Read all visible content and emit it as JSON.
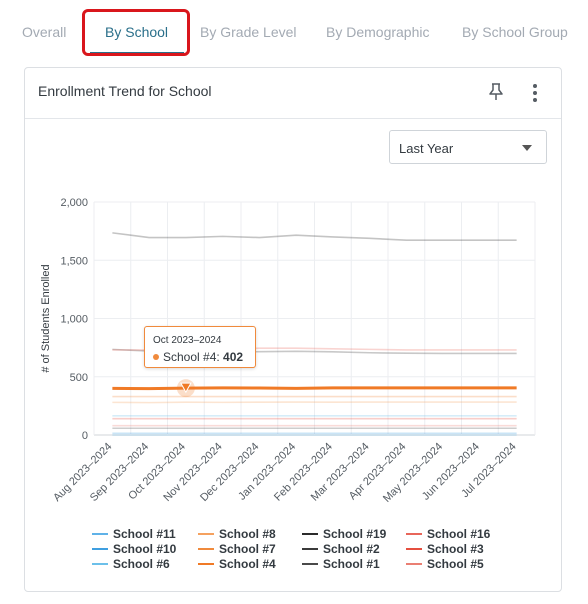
{
  "tabs": [
    {
      "label": "Overall",
      "active": false
    },
    {
      "label": "By School",
      "active": true
    },
    {
      "label": "By Grade Level",
      "active": false
    },
    {
      "label": "By Demographic",
      "active": false
    },
    {
      "label": "By School Group",
      "active": false
    }
  ],
  "card": {
    "title": "Enrollment Trend for School",
    "pin_icon": "pin-icon",
    "menu_icon": "more-vertical-icon"
  },
  "period_select": {
    "value": "Last Year"
  },
  "tooltip": {
    "title": "Oct 2023–2024",
    "series": "School #4",
    "separator": ": ",
    "value": "402"
  },
  "colors": {
    "accent": "#2a6f8a",
    "highlight": "#d9161c",
    "orange": "#f08a3c"
  },
  "chart_data": {
    "type": "line",
    "ylabel": "# of Students Enrolled",
    "xlabel": "",
    "ylim": [
      0,
      2000
    ],
    "yticks": [
      "0",
      "500",
      "1,000",
      "1,500",
      "2,000"
    ],
    "ytick_values": [
      0,
      500,
      1000,
      1500,
      2000
    ],
    "categories": [
      "Aug 2023–2024",
      "Sep 2023–2024",
      "Oct 2023–2024",
      "Nov 2023–2024",
      "Dec 2023–2024",
      "Jan 2023–2024",
      "Feb 2023–2024",
      "Mar 2023–2024",
      "Apr 2023–2024",
      "May 2023–2024",
      "Jun 2023–2024",
      "Jul 2023–2024"
    ],
    "legend_placement": "bottom",
    "highlighted_series": "School #4",
    "series": [
      {
        "name": "School #11",
        "color": "#5fb2e8",
        "faded": true,
        "values": [
          0,
          0,
          0,
          0,
          0,
          0,
          0,
          0,
          0,
          0,
          0,
          0
        ]
      },
      {
        "name": "School #10",
        "color": "#3f9fe0",
        "faded": true,
        "values": [
          15,
          15,
          15,
          15,
          15,
          15,
          15,
          15,
          15,
          15,
          15,
          15
        ]
      },
      {
        "name": "School #6",
        "color": "#6cc0ea",
        "faded": true,
        "values": [
          165,
          165,
          165,
          165,
          165,
          165,
          165,
          165,
          165,
          165,
          165,
          165
        ]
      },
      {
        "name": "School #8",
        "color": "#f5a15f",
        "faded": true,
        "values": [
          280,
          278,
          282,
          280,
          282,
          283,
          282,
          283,
          283,
          283,
          283,
          283
        ]
      },
      {
        "name": "School #7",
        "color": "#f08a3c",
        "faded": true,
        "values": [
          330,
          330,
          330,
          330,
          330,
          330,
          330,
          330,
          330,
          330,
          330,
          330
        ]
      },
      {
        "name": "School #4",
        "color": "#f07a26",
        "faded": false,
        "values": [
          400,
          398,
          402,
          404,
          403,
          400,
          404,
          404,
          404,
          404,
          404,
          404
        ]
      },
      {
        "name": "School #19",
        "color": "#2b2b2b",
        "faded": true,
        "values": [
          1735,
          1695,
          1695,
          1705,
          1695,
          1715,
          1700,
          1688,
          1672,
          1672,
          1672,
          1672
        ]
      },
      {
        "name": "School #2",
        "color": "#3a3a3a",
        "faded": true,
        "values": [
          735,
          720,
          715,
          712,
          715,
          718,
          714,
          706,
          702,
          700,
          700,
          700
        ]
      },
      {
        "name": "School #1",
        "color": "#4a4a4a",
        "faded": true,
        "values": [
          58,
          58,
          58,
          58,
          58,
          58,
          58,
          58,
          58,
          58,
          58,
          58
        ]
      },
      {
        "name": "School #16",
        "color": "#e8665a",
        "faded": true,
        "values": [
          730,
          730,
          735,
          740,
          745,
          745,
          740,
          735,
          730,
          730,
          730,
          730
        ]
      },
      {
        "name": "School #3",
        "color": "#e54f3f",
        "faded": true,
        "values": [
          140,
          140,
          140,
          140,
          140,
          140,
          140,
          140,
          140,
          140,
          140,
          140
        ]
      },
      {
        "name": "School #5",
        "color": "#ea7f73",
        "faded": true,
        "values": [
          80,
          80,
          80,
          80,
          80,
          80,
          80,
          80,
          80,
          80,
          80,
          80
        ]
      }
    ],
    "legend": [
      [
        "School #11",
        "School #8",
        "School #19",
        "School #16"
      ],
      [
        "School #10",
        "School #7",
        "School #2",
        "School #3"
      ],
      [
        "School #6",
        "School #4",
        "School #1",
        "School #5"
      ]
    ]
  }
}
